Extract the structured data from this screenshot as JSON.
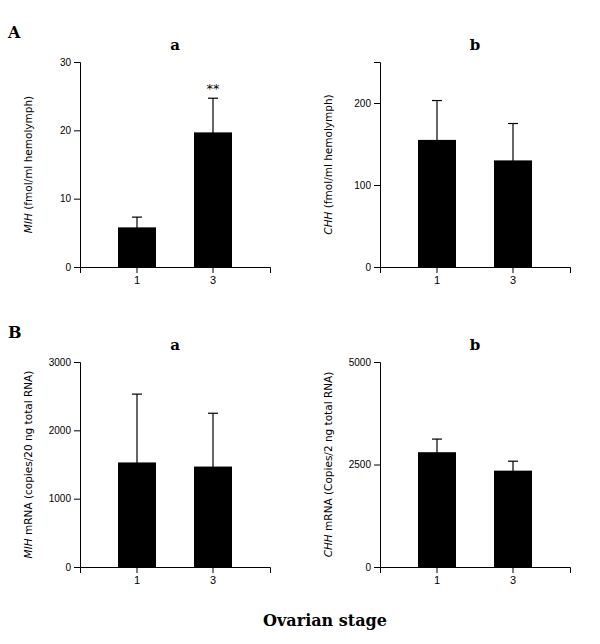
{
  "chart_data": [
    {
      "type": "bar",
      "title": "a",
      "ylabel": "MIH (fmol/ml hemolymph)",
      "categories": [
        "1",
        "3"
      ],
      "values": [
        5.8,
        19.7
      ],
      "errors": [
        1.5,
        5.0
      ],
      "color": "#000000",
      "ylim": [
        0,
        30
      ],
      "yticks": [
        0,
        10,
        20,
        30
      ],
      "annotations": [
        {
          "text": "**",
          "category": "3"
        }
      ]
    },
    {
      "type": "bar",
      "title": "b",
      "ylabel": "CHH (fmol/ml hemolymph)",
      "categories": [
        "1",
        "3"
      ],
      "values": [
        155,
        130
      ],
      "errors": [
        48,
        45
      ],
      "color": "#000000",
      "ylim": [
        0,
        250
      ],
      "yticks": [
        0,
        100,
        200
      ]
    },
    {
      "type": "bar",
      "title": "a",
      "ylabel": "MIH mRNA (copies/20 ng total RNA)",
      "categories": [
        "1",
        "3"
      ],
      "values": [
        1530,
        1470
      ],
      "errors": [
        1000,
        780
      ],
      "color": "#000000",
      "ylim": [
        0,
        3000
      ],
      "yticks": [
        0,
        1000,
        2000,
        3000
      ]
    },
    {
      "type": "bar",
      "title": "b",
      "ylabel": "CHH mRNA (Copies/2 ng total RNA)",
      "categories": [
        "1",
        "3"
      ],
      "values": [
        2800,
        2350
      ],
      "errors": [
        320,
        230
      ],
      "color": "#000000",
      "ylim": [
        0,
        5000
      ],
      "yticks": [
        0,
        2500,
        5000
      ]
    }
  ],
  "xlabel": "Ovarian stage",
  "row_labels": [
    "A",
    "B"
  ]
}
